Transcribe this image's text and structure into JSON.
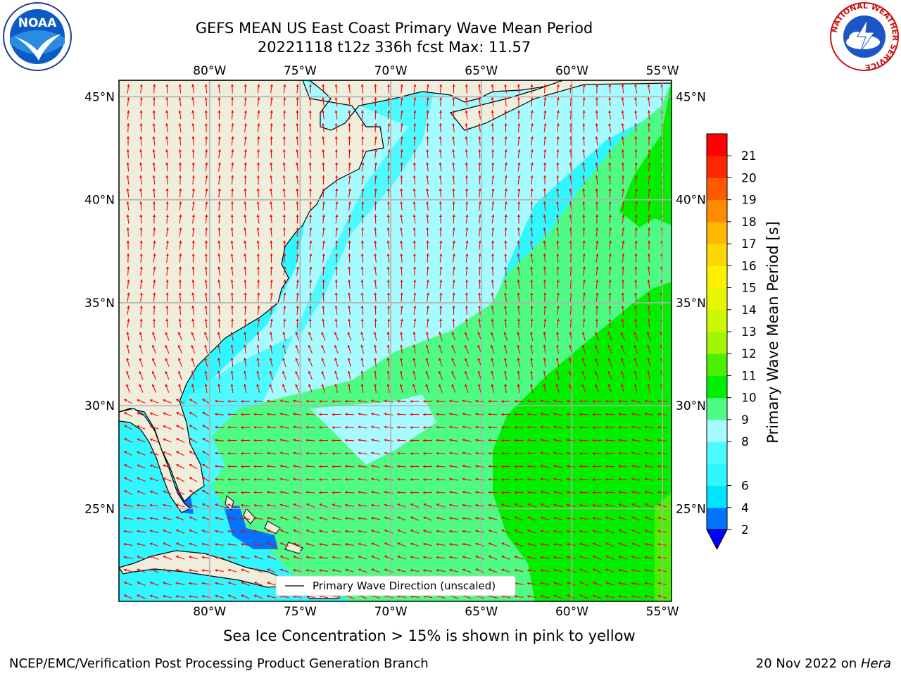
{
  "header": {
    "title_line1": "GEFS MEAN US East Coast Primary Wave Mean Period",
    "title_line2": "20221118 t12z 336h fcst   Max: 11.57"
  },
  "logos": {
    "left": {
      "name": "noaa-logo",
      "text": "NOAA"
    },
    "right": {
      "name": "nws-logo",
      "ring_text": "NATIONAL WEATHER SERVICE"
    }
  },
  "map": {
    "lon_labels": [
      "80°W",
      "75°W",
      "70°W",
      "65°W",
      "60°W",
      "55°W"
    ],
    "lon_values": [
      -80,
      -75,
      -70,
      -65,
      -60,
      -55
    ],
    "lat_labels": [
      "25°N",
      "30°N",
      "35°N",
      "40°N",
      "45°N"
    ],
    "lat_values": [
      25,
      30,
      35,
      40,
      45
    ],
    "lon_range": [
      -85,
      -54.5
    ],
    "lat_range": [
      20.5,
      45.8
    ],
    "land_color": "#efeddc",
    "grid_color": "#b0b0b0",
    "arrow_color": "#ff0000",
    "legend_label": "Primary Wave Direction (unscaled)"
  },
  "colorbar": {
    "title": "Primary Wave Mean Period [s]",
    "levels": [
      "2",
      "4",
      "6",
      "7",
      "8",
      "9",
      "10",
      "11",
      "12",
      "13",
      "14",
      "15",
      "16",
      "17",
      "18",
      "19",
      "20",
      "21"
    ],
    "level_labels": [
      "2",
      "4",
      "6",
      "8",
      "9",
      "10",
      "11",
      "12",
      "13",
      "14",
      "15",
      "16",
      "17",
      "18",
      "19",
      "20",
      "21"
    ],
    "colors": [
      "#0073ff",
      "#00e5ff",
      "#2ef7ff",
      "#4dfaff",
      "#a5fbff",
      "#4efb84",
      "#00ee00",
      "#4bef00",
      "#a2f500",
      "#ccf700",
      "#e8f700",
      "#fff000",
      "#ffd700",
      "#ffb700",
      "#ff8c00",
      "#ff5a00",
      "#ff2700",
      "#ff0000"
    ],
    "under_color": "#0000ff"
  },
  "footer": {
    "subtitle": "Sea Ice Concentration > 15% is shown in pink to yellow",
    "credit": "NCEP/EMC/Verification Post Processing Product Generation Branch",
    "date_prefix": "20 Nov 2022 on ",
    "date_host": "Hera"
  }
}
